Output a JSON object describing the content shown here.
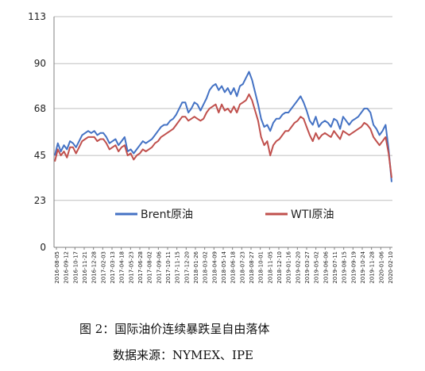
{
  "caption": {
    "line1": "图 2：国际油价连续暴跌呈自由落体",
    "line2": "数据来源：NYMEX、IPE"
  },
  "chart_data": {
    "type": "line",
    "title": "",
    "xlabel": "",
    "ylabel": "",
    "ylim": [
      0,
      113
    ],
    "yticks": [
      0,
      23,
      45,
      68,
      90,
      113
    ],
    "grid": "horizontal",
    "legend_position": "center",
    "x_tick_labels": [
      "2016-08-05",
      "2016-09-12",
      "2016-10-17",
      "2016-11-21",
      "2016-12-28",
      "2017-02-03",
      "2017-03-13",
      "2017-04-18",
      "2017-05-23",
      "2017-06-28",
      "2017-08-02",
      "2017-09-06",
      "2017-10-11",
      "2017-11-15",
      "2017-12-20",
      "2018-01-26",
      "2018-03-02",
      "2018-04-09",
      "2018-05-14",
      "2018-06-18",
      "2018-07-23",
      "2018-08-27",
      "2018-10-01",
      "2018-11-05",
      "2018-12-10",
      "2019-01-16",
      "2019-02-20",
      "2019-03-27",
      "2019-05-02",
      "2019-06-06",
      "2019-07-11",
      "2019-08-15",
      "2019-09-19",
      "2019-10-24",
      "2019-11-28",
      "2020-01-06",
      "2020-02-10"
    ],
    "series": [
      {
        "name": "Brent原油",
        "color": "#4472c4",
        "values": [
          45,
          51,
          47,
          50,
          48,
          52,
          51,
          49,
          52,
          55,
          56,
          57,
          56,
          57,
          55,
          56,
          56,
          54,
          51,
          52,
          53,
          50,
          52,
          54,
          47,
          48,
          46,
          48,
          50,
          52,
          51,
          52,
          53,
          55,
          57,
          59,
          60,
          60,
          62,
          63,
          65,
          68,
          71,
          71,
          66,
          68,
          71,
          70,
          67,
          70,
          73,
          77,
          79,
          80,
          77,
          79,
          76,
          78,
          75,
          78,
          74,
          79,
          80,
          83,
          86,
          82,
          76,
          70,
          63,
          59,
          60,
          57,
          61,
          63,
          63,
          65,
          66,
          66,
          68,
          70,
          72,
          74,
          71,
          67,
          62,
          60,
          64,
          59,
          61,
          62,
          61,
          59,
          63,
          62,
          58,
          64,
          62,
          60,
          62,
          63,
          64,
          66,
          68,
          68,
          66,
          60,
          58,
          55,
          57,
          60,
          48,
          32
        ]
      },
      {
        "name": "WTI原油",
        "color": "#c0504d",
        "values": [
          42,
          48,
          45,
          47,
          44,
          49,
          49,
          46,
          49,
          52,
          53,
          54,
          54,
          54,
          52,
          53,
          53,
          51,
          48,
          49,
          50,
          47,
          49,
          50,
          45,
          46,
          43,
          45,
          46,
          48,
          47,
          48,
          49,
          51,
          52,
          54,
          55,
          56,
          57,
          58,
          60,
          62,
          64,
          64,
          62,
          63,
          64,
          63,
          62,
          63,
          66,
          68,
          69,
          70,
          66,
          70,
          67,
          68,
          66,
          69,
          66,
          70,
          71,
          72,
          75,
          72,
          67,
          62,
          54,
          50,
          52,
          45,
          50,
          52,
          53,
          55,
          57,
          57,
          59,
          61,
          62,
          64,
          63,
          59,
          55,
          52,
          56,
          53,
          55,
          56,
          55,
          54,
          57,
          55,
          53,
          57,
          56,
          55,
          56,
          57,
          58,
          59,
          61,
          60,
          58,
          54,
          52,
          50,
          52,
          54,
          46,
          34
        ]
      }
    ]
  }
}
